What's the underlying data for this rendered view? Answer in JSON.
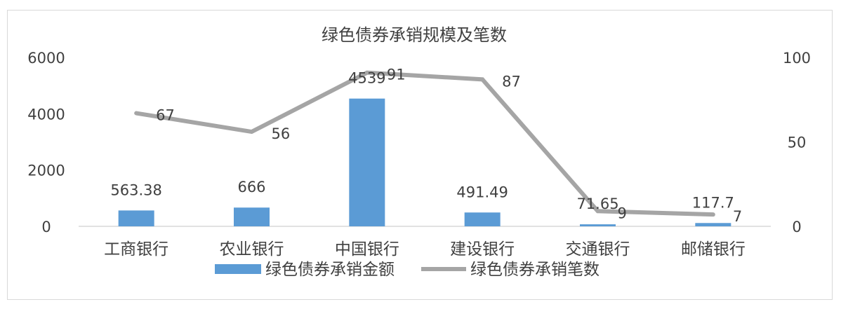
{
  "chart_data": {
    "type": "bar+line",
    "title": "绿色债券承销规模及笔数",
    "categories": [
      "工商银行",
      "农业银行",
      "中国银行",
      "建设银行",
      "交通银行",
      "邮储银行"
    ],
    "series": [
      {
        "name": "绿色债券承销金额",
        "type": "bar",
        "axis": "left",
        "values": [
          563.38,
          666,
          4539,
          491.49,
          71.65,
          117.7
        ],
        "labels": [
          "563.38",
          "666",
          "4539",
          "491.49",
          "71.65",
          "117.7"
        ],
        "color": "#5b9bd5"
      },
      {
        "name": "绿色债券承销笔数",
        "type": "line",
        "axis": "right",
        "values": [
          67,
          56,
          91,
          87,
          9,
          7
        ],
        "labels": [
          "67",
          "56",
          "91",
          "87",
          "9",
          "7"
        ],
        "color": "#a5a5a5"
      }
    ],
    "y_left": {
      "range": [
        0,
        6000
      ],
      "ticks": [
        "0",
        "2000",
        "4000",
        "6000"
      ]
    },
    "y_right": {
      "range": [
        0,
        100
      ],
      "ticks": [
        "0",
        "50",
        "100"
      ]
    },
    "grid": false,
    "legend": "bottom"
  }
}
